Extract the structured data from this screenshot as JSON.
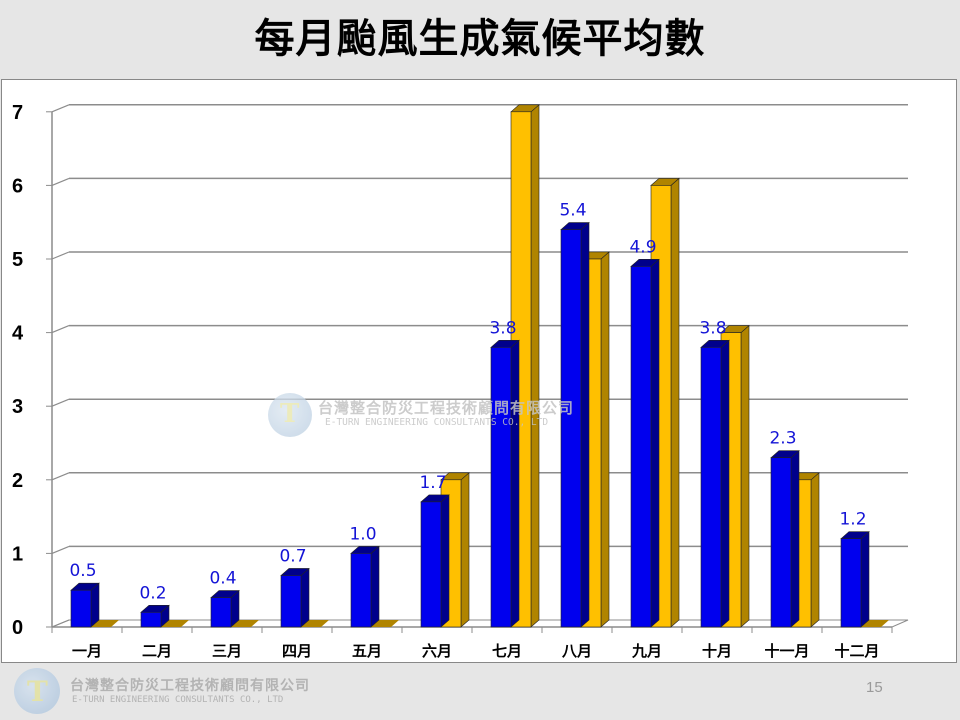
{
  "slide": {
    "title": "每月颱風生成氣候平均數",
    "page_number": "15"
  },
  "footer": {
    "company_cn": "台灣整合防災工程技術顧問有限公司",
    "company_en": "E-TURN ENGINEERING CONSULTANTS CO., LTD",
    "logo_icon": "e-turn-logo-icon"
  },
  "watermark": {
    "company_cn": "台灣整合防災工程技術顧問有限公司",
    "company_en": "E-TURN ENGINEERING CONSULTANTS CO., LTD"
  },
  "colors": {
    "series1": "#0000ee",
    "series1_side": "#00008b",
    "series2": "#ffc000",
    "series2_side": "#b08400",
    "label": "#1414d6",
    "grid": "#8c8c8c"
  },
  "chart_data": {
    "type": "bar",
    "style": "3d-clustered-column",
    "title": "每月颱風生成氣候平均數",
    "xlabel": "",
    "ylabel": "",
    "ylim": [
      0,
      7
    ],
    "yticks": [
      "0",
      "1",
      "2",
      "3",
      "4",
      "5",
      "6",
      "7"
    ],
    "grid": true,
    "legend": null,
    "categories": [
      "一月",
      "二月",
      "三月",
      "四月",
      "五月",
      "六月",
      "七月",
      "八月",
      "九月",
      "十月",
      "十一月",
      "十二月"
    ],
    "series": [
      {
        "name": "climatological average",
        "color": "#0000ee",
        "values": [
          0.5,
          0.2,
          0.4,
          0.7,
          1.0,
          1.7,
          3.8,
          5.4,
          4.9,
          3.8,
          2.3,
          1.2
        ],
        "data_labels": [
          "0.5",
          "0.2",
          "0.4",
          "0.7",
          "1.0",
          "1.7",
          "3.8",
          "5.4",
          "4.9",
          "3.8",
          "2.3",
          "1.2"
        ]
      },
      {
        "name": "comparison year",
        "color": "#ffc000",
        "values": [
          0,
          0,
          0,
          0,
          0,
          2,
          7,
          5,
          6,
          4,
          2,
          0
        ]
      }
    ]
  }
}
